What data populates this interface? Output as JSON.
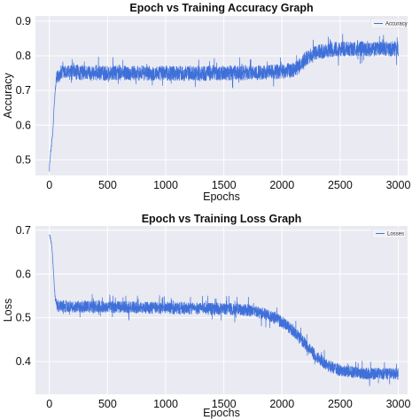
{
  "colors": {
    "line": "#3f70d9",
    "plot_bg": "#eaeaf2",
    "grid": "#ffffff"
  },
  "chart_data": [
    {
      "type": "line",
      "title": "Epoch vs Training Accuracy Graph",
      "xlabel": "Epochs",
      "ylabel": "Accuracy",
      "xlim": [
        -120,
        3080
      ],
      "ylim": [
        0.455,
        0.915
      ],
      "xticks": [
        0,
        500,
        1000,
        1500,
        2000,
        2500,
        3000
      ],
      "yticks": [
        0.5,
        0.6,
        0.7,
        0.8,
        0.9
      ],
      "ytick_labels": [
        "0.5",
        "0.6",
        "0.7",
        "0.8",
        "0.9"
      ],
      "grid": true,
      "legend_position": "top-right",
      "series": [
        {
          "name": "Accuracy",
          "noise": 0.022,
          "x": [
            0,
            10,
            20,
            30,
            40,
            50,
            60,
            80,
            100,
            150,
            200,
            500,
            1000,
            1500,
            1800,
            2000,
            2100,
            2150,
            2200,
            2250,
            2300,
            2400,
            2500,
            2600,
            2700,
            2800,
            2900,
            3000
          ],
          "y": [
            0.48,
            0.52,
            0.55,
            0.58,
            0.65,
            0.7,
            0.73,
            0.745,
            0.75,
            0.752,
            0.752,
            0.75,
            0.75,
            0.75,
            0.752,
            0.755,
            0.76,
            0.77,
            0.79,
            0.8,
            0.81,
            0.815,
            0.82,
            0.82,
            0.82,
            0.82,
            0.82,
            0.82
          ]
        }
      ]
    },
    {
      "type": "line",
      "title": "Epoch vs Training Loss Graph",
      "xlabel": "Epochs",
      "ylabel": "Loss",
      "xlim": [
        -120,
        3080
      ],
      "ylim": [
        0.325,
        0.71
      ],
      "xticks": [
        0,
        500,
        1000,
        1500,
        2000,
        2500,
        3000
      ],
      "yticks": [
        0.4,
        0.5,
        0.6,
        0.7
      ],
      "ytick_labels": [
        "0.4",
        "0.5",
        "0.6",
        "0.7"
      ],
      "grid": true,
      "legend_position": "top-right",
      "series": [
        {
          "name": "Losses",
          "noise": 0.014,
          "x": [
            0,
            10,
            20,
            30,
            40,
            50,
            60,
            80,
            100,
            200,
            500,
            1000,
            1500,
            1700,
            1800,
            1900,
            2000,
            2100,
            2200,
            2300,
            2400,
            2500,
            2600,
            2700,
            2800,
            2900,
            3000
          ],
          "y": [
            0.69,
            0.68,
            0.665,
            0.63,
            0.58,
            0.545,
            0.53,
            0.528,
            0.527,
            0.526,
            0.525,
            0.522,
            0.52,
            0.518,
            0.512,
            0.505,
            0.49,
            0.47,
            0.44,
            0.41,
            0.39,
            0.38,
            0.375,
            0.372,
            0.372,
            0.372,
            0.372
          ]
        }
      ]
    }
  ]
}
